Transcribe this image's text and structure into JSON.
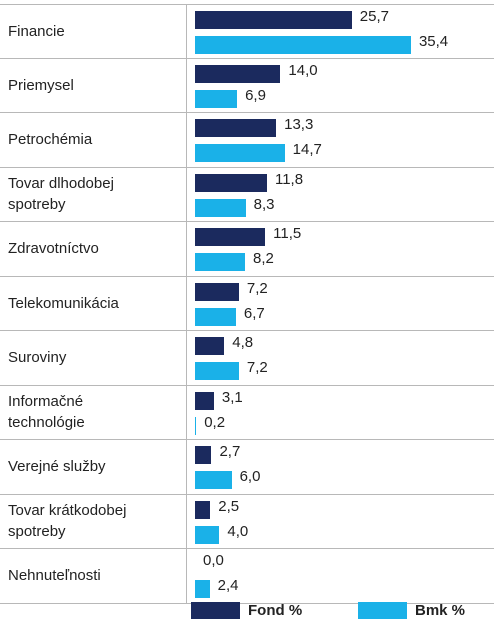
{
  "chart_data": {
    "type": "bar",
    "orientation": "horizontal",
    "categories": [
      "Financie",
      "Priemysel",
      "Petrochémia",
      "Tovar dlhodobej spotreby",
      "Zdravotníctvo",
      "Telekomunikácia",
      "Suroviny",
      "Informačné technológie",
      "Verejné služby",
      "Tovar krátkodobej spotreby",
      "Nehnuteľnosti"
    ],
    "series": [
      {
        "name": "Fond %",
        "color": "#1b2a5e",
        "values": [
          25.7,
          14.0,
          13.3,
          11.8,
          11.5,
          7.2,
          4.8,
          3.1,
          2.7,
          2.5,
          0.0
        ],
        "value_labels": [
          "25,7",
          "14,0",
          "13,3",
          "11,8",
          "11,5",
          "7,2",
          "4,8",
          "3,1",
          "2,7",
          "2,5",
          "0,0"
        ]
      },
      {
        "name": "Bmk %",
        "color": "#1ab1e8",
        "values": [
          35.4,
          6.9,
          14.7,
          8.3,
          8.2,
          6.7,
          7.2,
          0.2,
          6.0,
          4.0,
          2.4
        ],
        "value_labels": [
          "35,4",
          "6,9",
          "14,7",
          "8,3",
          "8,2",
          "6,7",
          "7,2",
          "0,2",
          "6,0",
          "4,0",
          "2,4"
        ]
      }
    ],
    "legend": "bottom"
  }
}
